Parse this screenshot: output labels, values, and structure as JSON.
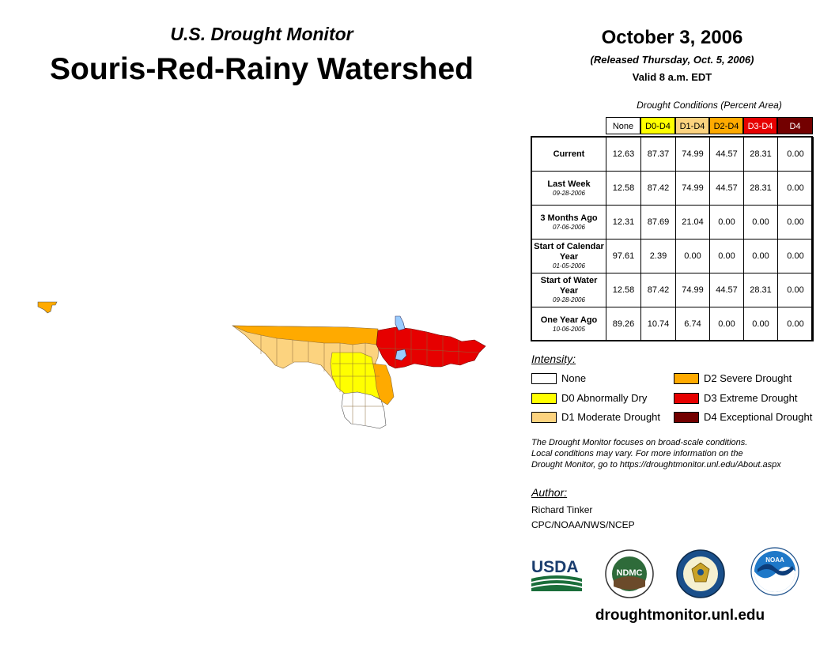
{
  "header": {
    "subtitle": "U.S. Drought Monitor",
    "title": "Souris-Red-Rainy Watershed",
    "date": "October 3, 2006",
    "released": "(Released Thursday, Oct. 5, 2006)",
    "valid": "Valid 8 a.m. EDT"
  },
  "table": {
    "caption": "Drought Conditions (Percent Area)",
    "columns": [
      "None",
      "D0-D4",
      "D1-D4",
      "D2-D4",
      "D3-D4",
      "D4"
    ],
    "column_colors": [
      "#ffffff",
      "#ffff00",
      "#fcd37f",
      "#ffaa00",
      "#e60000",
      "#730000"
    ],
    "rows": [
      {
        "label": "Current",
        "sublabel": "",
        "values": [
          "12.63",
          "87.37",
          "74.99",
          "44.57",
          "28.31",
          "0.00"
        ]
      },
      {
        "label": "Last Week",
        "sublabel": "09-28-2006",
        "values": [
          "12.58",
          "87.42",
          "74.99",
          "44.57",
          "28.31",
          "0.00"
        ]
      },
      {
        "label": "3 Months Ago",
        "sublabel": "07-06-2006",
        "values": [
          "12.31",
          "87.69",
          "21.04",
          "0.00",
          "0.00",
          "0.00"
        ]
      },
      {
        "label": "Start of Calendar Year",
        "sublabel": "01-05-2006",
        "values": [
          "97.61",
          "2.39",
          "0.00",
          "0.00",
          "0.00",
          "0.00"
        ]
      },
      {
        "label": "Start of Water Year",
        "sublabel": "09-28-2006",
        "values": [
          "12.58",
          "87.42",
          "74.99",
          "44.57",
          "28.31",
          "0.00"
        ]
      },
      {
        "label": "One Year Ago",
        "sublabel": "10-06-2005",
        "values": [
          "89.26",
          "10.74",
          "6.74",
          "0.00",
          "0.00",
          "0.00"
        ]
      }
    ]
  },
  "legend": {
    "title": "Intensity:",
    "items": [
      {
        "label": "None",
        "color": "#ffffff"
      },
      {
        "label": "D0 Abnormally Dry",
        "color": "#ffff00"
      },
      {
        "label": "D1 Moderate Drought",
        "color": "#fcd37f"
      },
      {
        "label": "D2 Severe Drought",
        "color": "#ffaa00"
      },
      {
        "label": "D3 Extreme Drought",
        "color": "#e60000"
      },
      {
        "label": "D4 Exceptional Drought",
        "color": "#730000"
      }
    ]
  },
  "note": {
    "line1": "The Drought Monitor focuses on broad-scale conditions.",
    "line2": "Local conditions may vary. For more information on the",
    "line3": "Drought Monitor, go to https://droughtmonitor.unl.edu/About.aspx"
  },
  "author": {
    "title": "Author:",
    "name": "Richard Tinker",
    "org": "CPC/NOAA/NWS/NCEP"
  },
  "logos": {
    "usda": "USDA",
    "ndmc": "NDMC",
    "noaa": "NOAA",
    "commerce_icon": "commerce-seal-icon"
  },
  "website": "droughtmonitor.unl.edu",
  "map": {
    "colors": {
      "none": "#ffffff",
      "d0": "#ffff00",
      "d1": "#fcd37f",
      "d2": "#ffaa00",
      "d3": "#e60000",
      "water": "#99ccff"
    }
  }
}
